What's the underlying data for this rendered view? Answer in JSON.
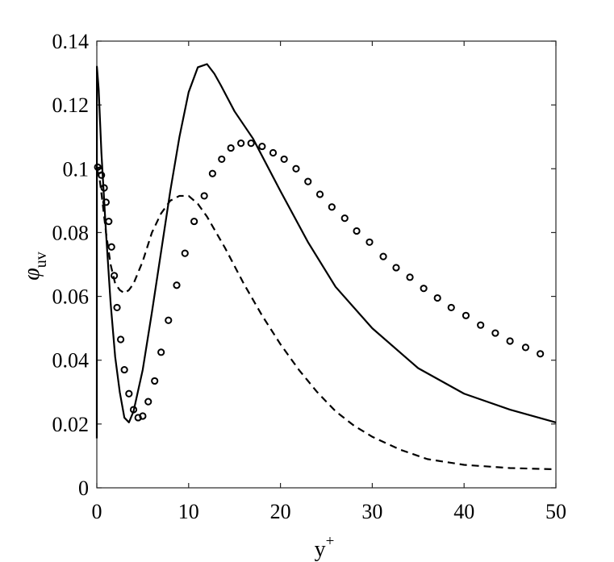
{
  "chart_data": {
    "type": "line",
    "title": "",
    "xlabel": "y",
    "xlabel_superscript": "+",
    "ylabel": "φ",
    "ylabel_subscript": "uv",
    "xlim": [
      0,
      50
    ],
    "ylim": [
      0,
      0.14
    ],
    "xticks": [
      0,
      10,
      20,
      30,
      40,
      50
    ],
    "xtick_labels": [
      "0",
      "10",
      "20",
      "30",
      "40",
      "50"
    ],
    "yticks": [
      0,
      0.02,
      0.04,
      0.06,
      0.08,
      0.1,
      0.12,
      0.14
    ],
    "ytick_labels": [
      "0",
      "0.02",
      "0.04",
      "0.06",
      "0.08",
      "0.1",
      "0.12",
      "0.14"
    ],
    "grid": false,
    "legend": "none",
    "series": [
      {
        "style": "solid",
        "color": "#000000",
        "x": [
          0,
          0.01,
          0.2,
          0.5,
          1,
          1.5,
          2,
          2.5,
          3,
          3.5,
          4,
          5,
          6,
          7,
          8,
          9,
          10,
          11,
          12,
          12.8,
          13.5,
          15,
          17,
          20,
          23,
          26,
          30,
          35,
          40,
          45,
          50
        ],
        "y": [
          0.0155,
          0.132,
          0.125,
          0.105,
          0.08,
          0.058,
          0.041,
          0.03,
          0.022,
          0.0205,
          0.024,
          0.037,
          0.055,
          0.074,
          0.093,
          0.11,
          0.124,
          0.1318,
          0.1328,
          0.1298,
          0.1262,
          0.118,
          0.1095,
          0.093,
          0.077,
          0.063,
          0.05,
          0.0375,
          0.0295,
          0.0245,
          0.0205
        ]
      },
      {
        "style": "dashed",
        "color": "#000000",
        "x": [
          0,
          0.3,
          0.6,
          1,
          1.5,
          2,
          2.5,
          3,
          3.5,
          4,
          5,
          6,
          7,
          8,
          9,
          10,
          11,
          12,
          14,
          16,
          18,
          20,
          22,
          24,
          26,
          28,
          30,
          33,
          36,
          40,
          45,
          50
        ],
        "y": [
          0.1,
          0.097,
          0.09,
          0.08,
          0.07,
          0.064,
          0.062,
          0.061,
          0.062,
          0.064,
          0.071,
          0.08,
          0.086,
          0.09,
          0.0915,
          0.0915,
          0.089,
          0.085,
          0.075,
          0.064,
          0.054,
          0.045,
          0.037,
          0.03,
          0.024,
          0.0195,
          0.016,
          0.012,
          0.009,
          0.0072,
          0.0062,
          0.0058
        ]
      },
      {
        "style": "markers",
        "marker": "circle",
        "color": "#000000",
        "x": [
          0.1,
          0.3,
          0.5,
          0.8,
          1.0,
          1.3,
          1.6,
          1.9,
          2.2,
          2.6,
          3.0,
          3.5,
          4.0,
          4.5,
          5.0,
          5.6,
          6.3,
          7.0,
          7.8,
          8.7,
          9.6,
          10.6,
          11.7,
          12.6,
          13.6,
          14.6,
          15.7,
          16.8,
          18.0,
          19.2,
          20.4,
          21.7,
          23.0,
          24.3,
          25.6,
          27.0,
          28.3,
          29.7,
          31.2,
          32.6,
          34.1,
          35.6,
          37.1,
          38.6,
          40.2,
          41.8,
          43.4,
          45.0,
          46.7,
          48.3
        ],
        "y": [
          0.1005,
          0.0995,
          0.098,
          0.094,
          0.0895,
          0.0835,
          0.0755,
          0.0665,
          0.0565,
          0.0465,
          0.037,
          0.0295,
          0.0245,
          0.022,
          0.0225,
          0.027,
          0.0335,
          0.0425,
          0.0525,
          0.0635,
          0.0735,
          0.0835,
          0.0915,
          0.0985,
          0.103,
          0.1065,
          0.108,
          0.108,
          0.107,
          0.105,
          0.103,
          0.1,
          0.096,
          0.092,
          0.088,
          0.0845,
          0.0805,
          0.077,
          0.0725,
          0.069,
          0.066,
          0.0625,
          0.0595,
          0.0565,
          0.054,
          0.051,
          0.0485,
          0.046,
          0.044,
          0.042
        ]
      }
    ]
  }
}
